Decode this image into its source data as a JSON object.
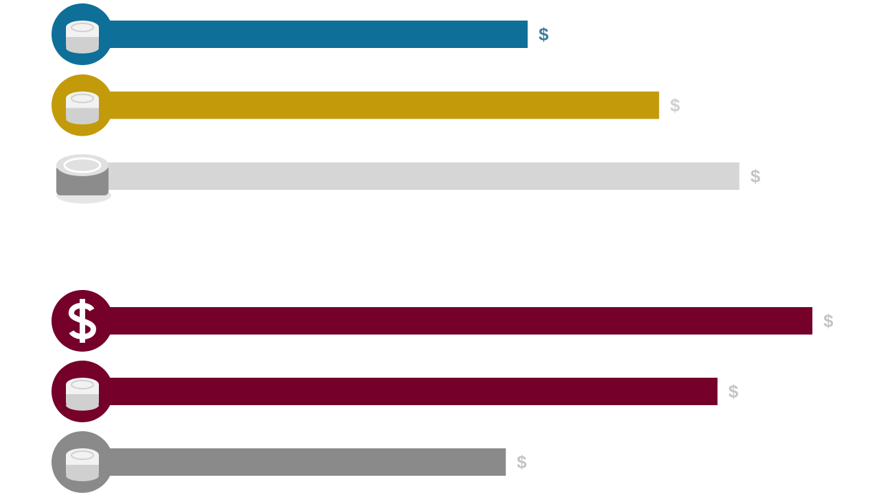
{
  "chart_data": {
    "type": "hbar",
    "values": [
      61,
      79,
      90,
      100,
      87,
      58
    ],
    "value_labels": [
      "$",
      "$",
      "$",
      "$",
      "$",
      "$"
    ],
    "colors": [
      "#0e6f99",
      "#c39a0a",
      "#d6d6d6",
      "#75002a",
      "#75002a",
      "#8a8a8a"
    ],
    "label_colors": [
      "#3d7d9c",
      "#cfcfcf",
      "#c4c4c4",
      "#c4c4c4",
      "#c4c4c4",
      "#c4c4c4"
    ],
    "xlim": [
      0,
      100
    ]
  }
}
